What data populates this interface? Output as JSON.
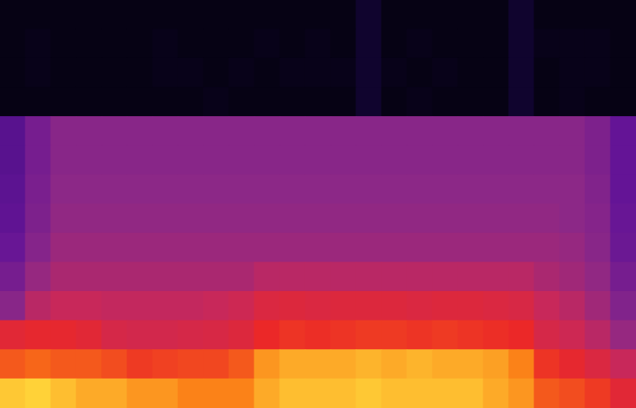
{
  "chart_data": {
    "type": "heatmap",
    "tick_labels": false,
    "xlim": [
      0,
      25
    ],
    "ylim": [
      0,
      14
    ],
    "cells": [
      [
        0.03,
        0.03,
        0.03,
        0.03,
        0.03,
        0.03,
        0.03,
        0.03,
        0.03,
        0.03,
        0.03,
        0.03,
        0.03,
        0.03,
        0.08,
        0.03,
        0.03,
        0.03,
        0.03,
        0.03,
        0.08,
        0.03,
        0.03,
        0.03,
        0.03
      ],
      [
        0.03,
        0.04,
        0.03,
        0.03,
        0.03,
        0.03,
        0.04,
        0.03,
        0.03,
        0.03,
        0.04,
        0.03,
        0.04,
        0.03,
        0.08,
        0.03,
        0.04,
        0.03,
        0.03,
        0.03,
        0.08,
        0.04,
        0.04,
        0.04,
        0.03
      ],
      [
        0.03,
        0.04,
        0.03,
        0.03,
        0.03,
        0.03,
        0.04,
        0.04,
        0.03,
        0.04,
        0.03,
        0.04,
        0.04,
        0.04,
        0.08,
        0.04,
        0.03,
        0.04,
        0.03,
        0.03,
        0.08,
        0.03,
        0.04,
        0.04,
        0.03
      ],
      [
        0.03,
        0.03,
        0.03,
        0.03,
        0.03,
        0.03,
        0.03,
        0.03,
        0.04,
        0.03,
        0.03,
        0.03,
        0.03,
        0.03,
        0.08,
        0.03,
        0.04,
        0.03,
        0.03,
        0.03,
        0.08,
        0.03,
        0.04,
        0.03,
        0.03
      ],
      [
        0.32,
        0.4,
        0.45,
        0.45,
        0.45,
        0.45,
        0.45,
        0.45,
        0.45,
        0.45,
        0.45,
        0.45,
        0.45,
        0.45,
        0.45,
        0.45,
        0.45,
        0.45,
        0.45,
        0.45,
        0.45,
        0.45,
        0.45,
        0.42,
        0.35
      ],
      [
        0.32,
        0.4,
        0.45,
        0.45,
        0.45,
        0.45,
        0.45,
        0.45,
        0.45,
        0.45,
        0.45,
        0.45,
        0.45,
        0.45,
        0.45,
        0.45,
        0.45,
        0.45,
        0.45,
        0.45,
        0.45,
        0.45,
        0.45,
        0.42,
        0.35
      ],
      [
        0.33,
        0.41,
        0.46,
        0.46,
        0.46,
        0.46,
        0.46,
        0.46,
        0.46,
        0.46,
        0.46,
        0.46,
        0.46,
        0.46,
        0.46,
        0.46,
        0.46,
        0.46,
        0.46,
        0.46,
        0.46,
        0.46,
        0.46,
        0.43,
        0.35
      ],
      [
        0.34,
        0.42,
        0.47,
        0.47,
        0.47,
        0.47,
        0.47,
        0.47,
        0.47,
        0.47,
        0.47,
        0.47,
        0.47,
        0.47,
        0.47,
        0.47,
        0.47,
        0.47,
        0.47,
        0.47,
        0.47,
        0.47,
        0.46,
        0.44,
        0.36
      ],
      [
        0.36,
        0.44,
        0.49,
        0.49,
        0.49,
        0.49,
        0.49,
        0.49,
        0.49,
        0.49,
        0.49,
        0.49,
        0.49,
        0.49,
        0.49,
        0.49,
        0.49,
        0.49,
        0.49,
        0.49,
        0.49,
        0.49,
        0.48,
        0.45,
        0.37
      ],
      [
        0.4,
        0.48,
        0.52,
        0.52,
        0.52,
        0.52,
        0.52,
        0.52,
        0.52,
        0.52,
        0.55,
        0.55,
        0.55,
        0.55,
        0.55,
        0.55,
        0.55,
        0.55,
        0.55,
        0.55,
        0.55,
        0.52,
        0.5,
        0.47,
        0.4
      ],
      [
        0.45,
        0.55,
        0.58,
        0.58,
        0.57,
        0.57,
        0.57,
        0.57,
        0.58,
        0.6,
        0.65,
        0.66,
        0.65,
        0.66,
        0.66,
        0.66,
        0.65,
        0.66,
        0.66,
        0.65,
        0.64,
        0.58,
        0.55,
        0.5,
        0.43
      ],
      [
        0.68,
        0.7,
        0.7,
        0.68,
        0.63,
        0.62,
        0.62,
        0.63,
        0.64,
        0.66,
        0.72,
        0.74,
        0.73,
        0.74,
        0.75,
        0.75,
        0.74,
        0.75,
        0.74,
        0.73,
        0.72,
        0.63,
        0.6,
        0.55,
        0.48
      ],
      [
        0.8,
        0.82,
        0.8,
        0.8,
        0.78,
        0.75,
        0.76,
        0.77,
        0.77,
        0.8,
        0.88,
        0.9,
        0.9,
        0.9,
        0.91,
        0.9,
        0.91,
        0.9,
        0.9,
        0.89,
        0.86,
        0.74,
        0.7,
        0.65,
        0.58
      ],
      [
        0.93,
        0.94,
        0.92,
        0.9,
        0.9,
        0.88,
        0.88,
        0.86,
        0.86,
        0.86,
        0.9,
        0.92,
        0.92,
        0.92,
        0.93,
        0.92,
        0.92,
        0.92,
        0.92,
        0.9,
        0.88,
        0.8,
        0.78,
        0.75,
        0.68
      ]
    ]
  }
}
